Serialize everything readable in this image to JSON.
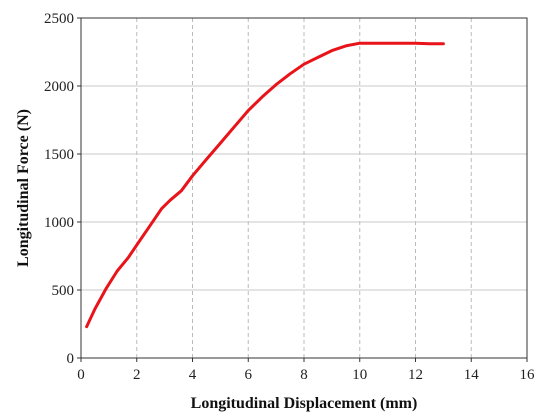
{
  "chart_data": {
    "type": "line",
    "title": "",
    "xlabel": "Longitudinal Displacement (mm)",
    "ylabel": "Longitudinal Force (N)",
    "xlim": [
      0,
      16
    ],
    "ylim": [
      0,
      2500
    ],
    "x_ticks": [
      "0",
      "2",
      "4",
      "6",
      "8",
      "10",
      "12",
      "14",
      "16"
    ],
    "y_ticks": [
      "0",
      "500",
      "1000",
      "1500",
      "2000",
      "2500"
    ],
    "grid": {
      "x": "dashed",
      "y": "solid"
    },
    "series": [
      {
        "color": "#e8141a",
        "x": [
          0.2,
          0.5,
          0.9,
          1.3,
          1.7,
          2.1,
          2.5,
          2.9,
          3.2,
          3.6,
          4.0,
          4.5,
          5.0,
          5.5,
          6.0,
          6.5,
          7.0,
          7.5,
          8.0,
          8.5,
          9.0,
          9.5,
          10.0,
          10.5,
          11.0,
          11.5,
          12.0,
          12.5,
          13.0
        ],
        "y": [
          230,
          360,
          510,
          640,
          740,
          860,
          980,
          1100,
          1160,
          1230,
          1340,
          1460,
          1580,
          1700,
          1820,
          1920,
          2010,
          2090,
          2160,
          2210,
          2260,
          2295,
          2315,
          2315,
          2315,
          2315,
          2315,
          2310,
          2310
        ]
      }
    ]
  }
}
